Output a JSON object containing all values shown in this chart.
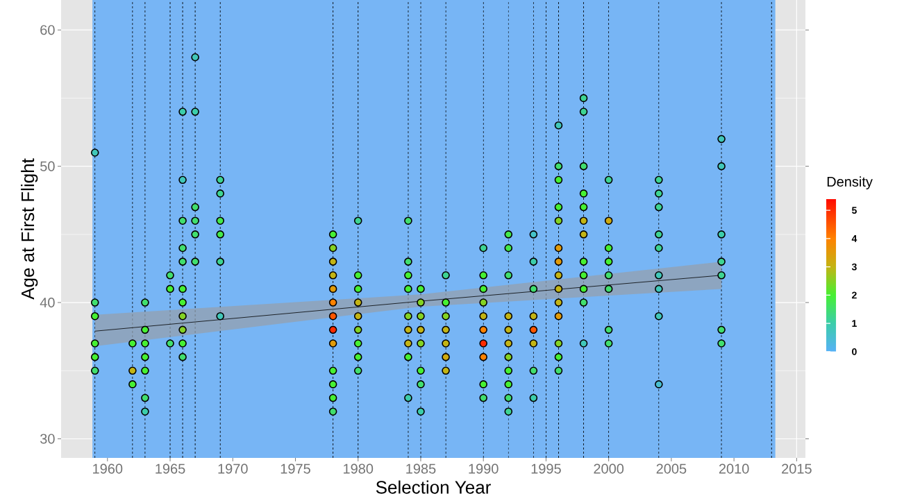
{
  "chart_data": {
    "type": "scatter",
    "xlabel": "Selection Year",
    "ylabel": "Age at First Flight",
    "clabel": "Density",
    "xlim": [
      1956.3,
      2015.7
    ],
    "ylim": [
      28.6,
      62.2
    ],
    "xticks": [
      1960,
      1965,
      1970,
      1975,
      1980,
      1985,
      1990,
      1995,
      2000,
      2005,
      2010,
      2015
    ],
    "yticks": [
      30,
      40,
      50,
      60
    ],
    "clim": [
      0,
      5.4
    ],
    "cticks": [
      0,
      1,
      2,
      3,
      4,
      5
    ],
    "grid": true,
    "bands": [
      {
        "axis": "x",
        "from": 1958.8,
        "to": 2013.3,
        "color": "#77b5f5"
      }
    ],
    "ref_lines": [
      {
        "axis": "x",
        "value": 1959,
        "line_style": "dashed",
        "color": "#000000"
      },
      {
        "axis": "x",
        "value": 1962,
        "line_style": "dashed",
        "color": "#000000"
      },
      {
        "axis": "x",
        "value": 1963,
        "line_style": "dashed",
        "color": "#000000"
      },
      {
        "axis": "x",
        "value": 1965,
        "line_style": "dashed",
        "color": "#000000"
      },
      {
        "axis": "x",
        "value": 1966,
        "line_style": "dashed",
        "color": "#000000"
      },
      {
        "axis": "x",
        "value": 1967,
        "line_style": "dashed",
        "color": "#000000"
      },
      {
        "axis": "x",
        "value": 1969,
        "line_style": "dashed",
        "color": "#000000"
      },
      {
        "axis": "x",
        "value": 1978,
        "line_style": "dashed",
        "color": "#000000"
      },
      {
        "axis": "x",
        "value": 1980,
        "line_style": "dashed",
        "color": "#000000"
      },
      {
        "axis": "x",
        "value": 1984,
        "line_style": "dashed",
        "color": "#000000"
      },
      {
        "axis": "x",
        "value": 1985,
        "line_style": "dashed",
        "color": "#000000"
      },
      {
        "axis": "x",
        "value": 1987,
        "line_style": "dashed",
        "color": "#000000"
      },
      {
        "axis": "x",
        "value": 1990,
        "line_style": "dashed",
        "color": "#000000"
      },
      {
        "axis": "x",
        "value": 1992,
        "line_style": "dashed",
        "color": "#000000"
      },
      {
        "axis": "x",
        "value": 1994,
        "line_style": "dashed",
        "color": "#000000"
      },
      {
        "axis": "x",
        "value": 1995,
        "line_style": "dashed",
        "color": "#000000"
      },
      {
        "axis": "x",
        "value": 1996,
        "line_style": "dashed",
        "color": "#000000"
      },
      {
        "axis": "x",
        "value": 1998,
        "line_style": "dashed",
        "color": "#000000"
      },
      {
        "axis": "x",
        "value": 2000,
        "line_style": "dashed",
        "color": "#000000"
      },
      {
        "axis": "x",
        "value": 2004,
        "line_style": "dashed",
        "color": "#000000"
      },
      {
        "axis": "x",
        "value": 2009,
        "line_style": "dashed",
        "color": "#000000"
      },
      {
        "axis": "x",
        "value": 2013,
        "line_style": "dashed",
        "color": "#000000"
      }
    ],
    "series": [
      {
        "marker": "circle",
        "color": "#000000",
        "x": [
          1959,
          1959,
          1959,
          1959,
          1959,
          1959,
          1962,
          1962,
          1962,
          1963,
          1963,
          1963,
          1963,
          1963,
          1963,
          1963,
          1965,
          1965,
          1965,
          1966,
          1966,
          1966,
          1966,
          1966,
          1966,
          1966,
          1966,
          1966,
          1966,
          1966,
          1967,
          1967,
          1967,
          1967,
          1967,
          1967,
          1969,
          1969,
          1969,
          1969,
          1969,
          1969,
          1978,
          1978,
          1978,
          1978,
          1978,
          1978,
          1978,
          1978,
          1978,
          1978,
          1978,
          1978,
          1978,
          1980,
          1980,
          1980,
          1980,
          1980,
          1980,
          1980,
          1980,
          1980,
          1984,
          1984,
          1984,
          1984,
          1984,
          1984,
          1984,
          1984,
          1984,
          1985,
          1985,
          1985,
          1985,
          1985,
          1985,
          1985,
          1985,
          1987,
          1987,
          1987,
          1987,
          1987,
          1987,
          1987,
          1990,
          1990,
          1990,
          1990,
          1990,
          1990,
          1990,
          1990,
          1990,
          1990,
          1992,
          1992,
          1992,
          1992,
          1992,
          1992,
          1992,
          1992,
          1992,
          1992,
          1992,
          1994,
          1994,
          1994,
          1994,
          1994,
          1994,
          1994,
          1994,
          1996,
          1996,
          1996,
          1996,
          1996,
          1996,
          1996,
          1996,
          1996,
          1996,
          1996,
          1996,
          1996,
          1996,
          1998,
          1998,
          1998,
          1998,
          1998,
          1998,
          1998,
          1998,
          1998,
          1998,
          1998,
          1998,
          2000,
          2000,
          2000,
          2000,
          2000,
          2000,
          2000,
          2000,
          2004,
          2004,
          2004,
          2004,
          2004,
          2004,
          2004,
          2004,
          2004,
          2009,
          2009,
          2009,
          2009,
          2009,
          2009,
          2009
        ],
        "values": [
          51,
          40,
          39,
          37,
          36,
          35,
          37,
          35,
          34,
          40,
          38,
          37,
          36,
          35,
          33,
          32,
          42,
          41,
          37,
          54,
          49,
          46,
          44,
          43,
          41,
          40,
          39,
          38,
          37,
          36,
          58,
          54,
          47,
          46,
          45,
          43,
          49,
          48,
          46,
          45,
          43,
          39,
          45,
          44,
          43,
          42,
          41,
          40,
          39,
          38,
          37,
          35,
          34,
          33,
          32,
          46,
          42,
          41,
          40,
          39,
          38,
          37,
          36,
          35,
          46,
          43,
          42,
          41,
          39,
          38,
          37,
          36,
          33,
          41,
          40,
          39,
          38,
          37,
          35,
          34,
          32,
          42,
          40,
          39,
          38,
          37,
          36,
          35,
          44,
          42,
          41,
          40,
          39,
          38,
          37,
          36,
          34,
          33,
          45,
          44,
          42,
          39,
          38,
          37,
          36,
          35,
          34,
          33,
          32,
          45,
          43,
          41,
          39,
          38,
          37,
          35,
          33,
          53,
          50,
          49,
          47,
          46,
          44,
          43,
          42,
          41,
          40,
          39,
          37,
          36,
          35,
          55,
          54,
          50,
          48,
          47,
          46,
          45,
          43,
          42,
          41,
          40,
          37,
          49,
          46,
          44,
          43,
          42,
          41,
          38,
          37,
          49,
          48,
          47,
          45,
          44,
          42,
          41,
          39,
          34,
          52,
          50,
          45,
          43,
          42,
          38,
          37
        ],
        "cvalues": [
          0.8,
          1.5,
          2,
          2,
          2,
          1.5,
          2,
          3,
          2,
          1.5,
          2,
          2,
          2,
          2,
          1.5,
          1,
          1.5,
          2,
          1.5,
          1,
          0.8,
          1.5,
          1.5,
          1.5,
          2,
          2,
          2.5,
          2.5,
          2,
          1.5,
          0.8,
          1,
          1.5,
          1.5,
          1.5,
          1.5,
          1.2,
          1.2,
          1.8,
          1.8,
          1.2,
          0.8,
          2,
          2.5,
          3,
          3,
          3.5,
          4,
          4.5,
          5,
          3.5,
          2,
          2,
          2,
          1.5,
          1.2,
          2,
          2,
          3,
          3,
          2.5,
          2,
          2,
          1.5,
          1.5,
          1.5,
          2,
          2,
          2.5,
          3,
          3,
          2,
          1,
          2,
          2.5,
          2.5,
          3,
          2.5,
          2,
          1.5,
          1,
          1.2,
          2,
          2.5,
          3,
          3,
          3.2,
          3,
          1.2,
          2,
          2,
          2.5,
          3,
          4,
          5,
          4,
          2,
          1.5,
          1.8,
          1.8,
          1.5,
          3,
          3,
          3,
          2.5,
          2,
          2,
          1.5,
          1.2,
          0.6,
          1,
          1.5,
          3,
          4.5,
          3,
          1.5,
          1,
          0.8,
          1.5,
          2,
          2,
          2.5,
          3.5,
          3.5,
          3,
          3,
          3,
          3.5,
          2.5,
          2,
          1.5,
          1.2,
          1.2,
          1.5,
          2,
          2,
          3,
          3,
          2,
          2,
          2,
          1.5,
          0.8,
          1.2,
          3.2,
          2,
          2,
          1.5,
          1.5,
          1.5,
          1.5,
          1.2,
          1.2,
          1.2,
          1.2,
          1.2,
          0.8,
          0.8,
          0.8,
          0.5,
          0.8,
          0.8,
          1,
          1.2,
          1.2,
          1.5,
          1.5
        ]
      },
      {
        "type": "line",
        "color": "#000000",
        "x": [
          1959,
          1985,
          2009
        ],
        "values": [
          37.9,
          40.1,
          42.0
        ],
        "lower": [
          36.8,
          39.7,
          41.0
        ],
        "upper": [
          39.1,
          40.6,
          43.0
        ]
      }
    ]
  }
}
